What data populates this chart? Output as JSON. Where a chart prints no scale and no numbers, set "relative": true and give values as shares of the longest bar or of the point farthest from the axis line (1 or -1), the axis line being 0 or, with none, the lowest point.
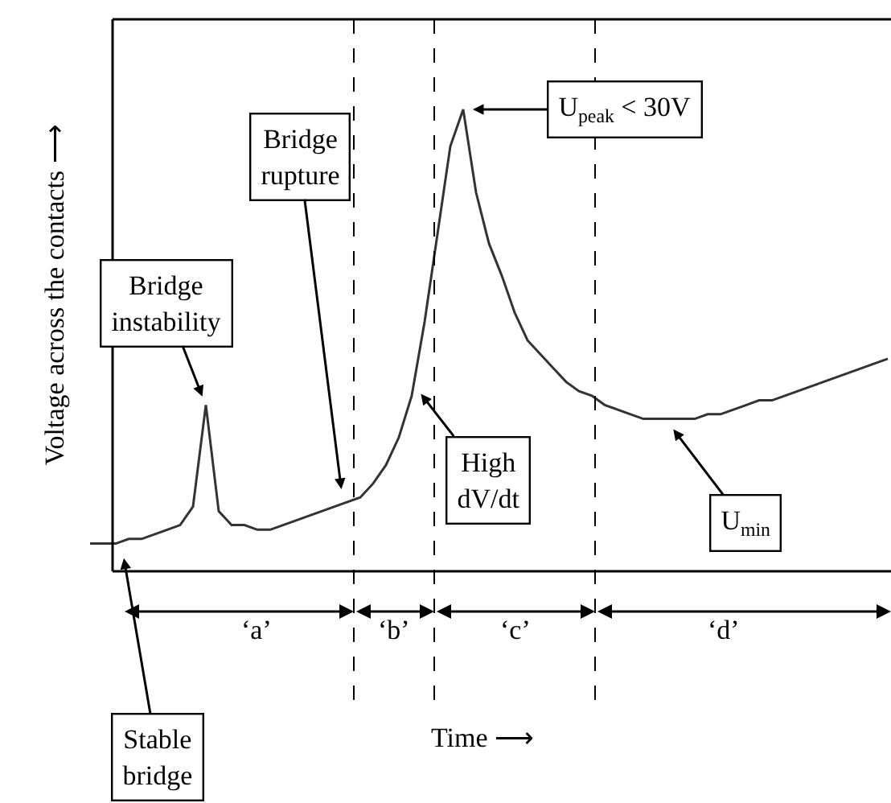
{
  "chart_data": {
    "type": "line",
    "relative": true,
    "ylabel": "Voltage across the contacts ⟶",
    "categories": [
      null,
      null,
      null,
      null,
      null,
      null,
      null,
      null,
      null,
      null,
      null,
      null,
      null,
      null,
      null,
      null,
      null,
      null,
      null,
      null,
      null,
      null,
      null,
      null,
      null,
      null,
      null,
      null,
      null,
      null,
      null,
      null,
      null,
      null,
      null,
      null,
      null,
      null,
      null,
      null,
      null,
      null,
      null,
      null,
      null,
      null,
      null,
      null,
      null,
      null,
      null,
      null,
      null,
      null,
      null,
      null,
      null,
      null,
      null,
      null,
      null,
      null,
      null
    ],
    "series": [
      {
        "color": "#333333",
        "values": [
          0.06,
          0.06,
          0.06,
          0.07,
          0.07,
          0.08,
          0.09,
          0.1,
          0.14,
          0.36,
          0.13,
          0.1,
          0.1,
          0.09,
          0.09,
          0.1,
          0.11,
          0.12,
          0.13,
          0.14,
          0.15,
          0.16,
          0.19,
          0.23,
          0.29,
          0.38,
          0.54,
          0.73,
          0.92,
          1,
          0.82,
          0.71,
          0.64,
          0.56,
          0.5,
          0.47,
          0.44,
          0.41,
          0.39,
          0.38,
          0.36,
          0.35,
          0.34,
          0.33,
          0.33,
          0.33,
          0.33,
          0.33,
          0.34,
          0.34,
          0.35,
          0.36,
          0.37,
          0.37,
          0.38,
          0.39,
          0.4,
          0.41,
          0.42,
          0.43,
          0.44,
          0.45,
          0.46
        ]
      }
    ],
    "annotations": [
      "Bridge\ninstability",
      "Bridge\nrupture",
      "U$_{peak}$ < 30V",
      "High\ndV/dt",
      "U$_{min}$",
      "Stable\nbridge",
      "‘a’",
      "‘b’",
      "‘c’",
      "‘d’",
      "Time ⟶"
    ],
    "grid": false,
    "marker": "none",
    "line_style": "solid"
  }
}
